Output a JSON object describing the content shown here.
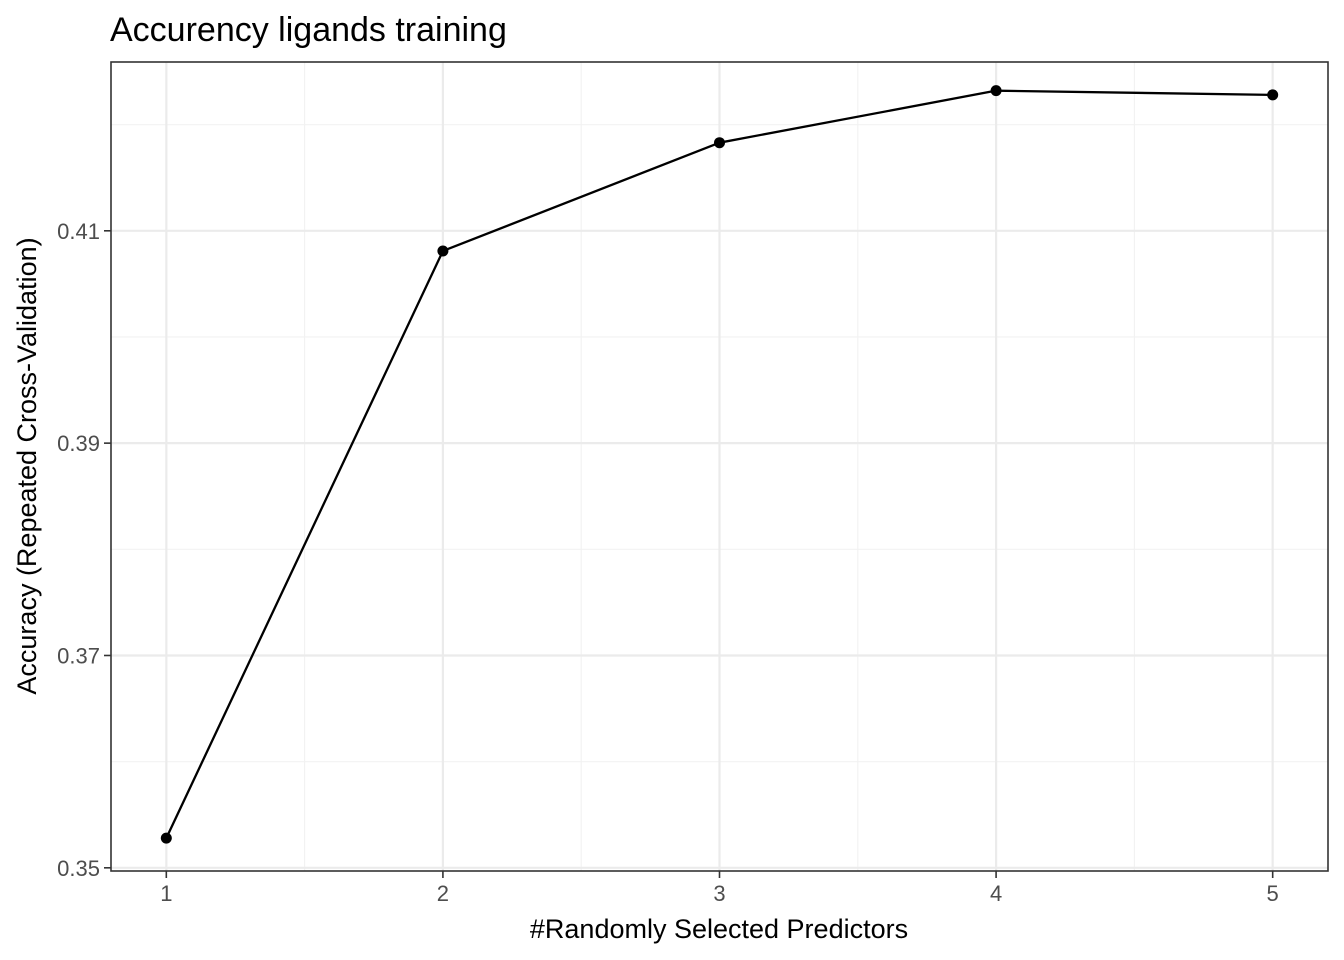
{
  "chart_data": {
    "type": "line",
    "title": "Accurency ligands training",
    "xlabel": "#Randomly Selected Predictors",
    "ylabel": "Accuracy (Repeated Cross-Validation)",
    "x": [
      1,
      2,
      3,
      4,
      5
    ],
    "series": [
      {
        "values": [
          0.3528,
          0.4081,
          0.4183,
          0.4232,
          0.4228
        ]
      }
    ],
    "xlim": [
      0.8,
      5.2
    ],
    "ylim": [
      0.3497,
      0.4259
    ],
    "xticks": [
      1,
      2,
      3,
      4,
      5
    ],
    "yticks": [
      0.35,
      0.37,
      0.39,
      0.41
    ],
    "xtick_labels": [
      "1",
      "2",
      "3",
      "4",
      "5"
    ],
    "ytick_labels": [
      "0.35",
      "0.37",
      "0.39",
      "0.41"
    ],
    "grid": true,
    "line_color": "#000000",
    "point_color": "#000000",
    "grid_major_color": "#ebebeb",
    "grid_minor_color": "#f2f2f2",
    "panel_border_color": "#333333"
  }
}
